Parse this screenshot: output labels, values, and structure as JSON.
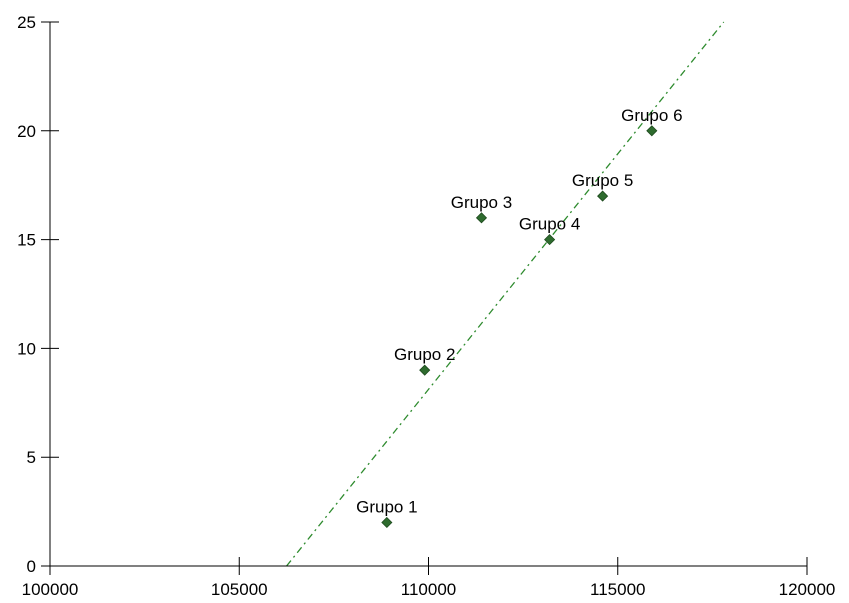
{
  "chart_data": {
    "type": "scatter",
    "title": "",
    "xlabel": "",
    "ylabel": "",
    "xlim": [
      100000,
      120000
    ],
    "ylim": [
      0,
      25
    ],
    "x_ticks": [
      {
        "value": 100000,
        "label": "100000"
      },
      {
        "value": 105000,
        "label": "105000"
      },
      {
        "value": 110000,
        "label": "110000"
      },
      {
        "value": 115000,
        "label": "115000"
      },
      {
        "value": 120000,
        "label": "120000"
      }
    ],
    "y_ticks": [
      {
        "value": 0,
        "label": "0"
      },
      {
        "value": 5,
        "label": "5"
      },
      {
        "value": 10,
        "label": "10"
      },
      {
        "value": 15,
        "label": "15"
      },
      {
        "value": 20,
        "label": "20"
      },
      {
        "value": 25,
        "label": "25"
      }
    ],
    "grid": false,
    "points": [
      {
        "label": "Grupo 1",
        "x": 108900,
        "y": 2
      },
      {
        "label": "Grupo 2",
        "x": 109900,
        "y": 9
      },
      {
        "label": "Grupo 3",
        "x": 111400,
        "y": 16
      },
      {
        "label": "Grupo 4",
        "x": 113200,
        "y": 15
      },
      {
        "label": "Grupo 5",
        "x": 114600,
        "y": 17
      },
      {
        "label": "Grupo 6",
        "x": 115900,
        "y": 20
      }
    ],
    "trendline": {
      "style": "dash-dot",
      "x0": 106250,
      "y0": 0,
      "x1": 117800,
      "y1": 25
    },
    "colors": {
      "marker": "#2e6b2e",
      "trendline": "#2e8b2e",
      "axis": "#000000"
    }
  }
}
